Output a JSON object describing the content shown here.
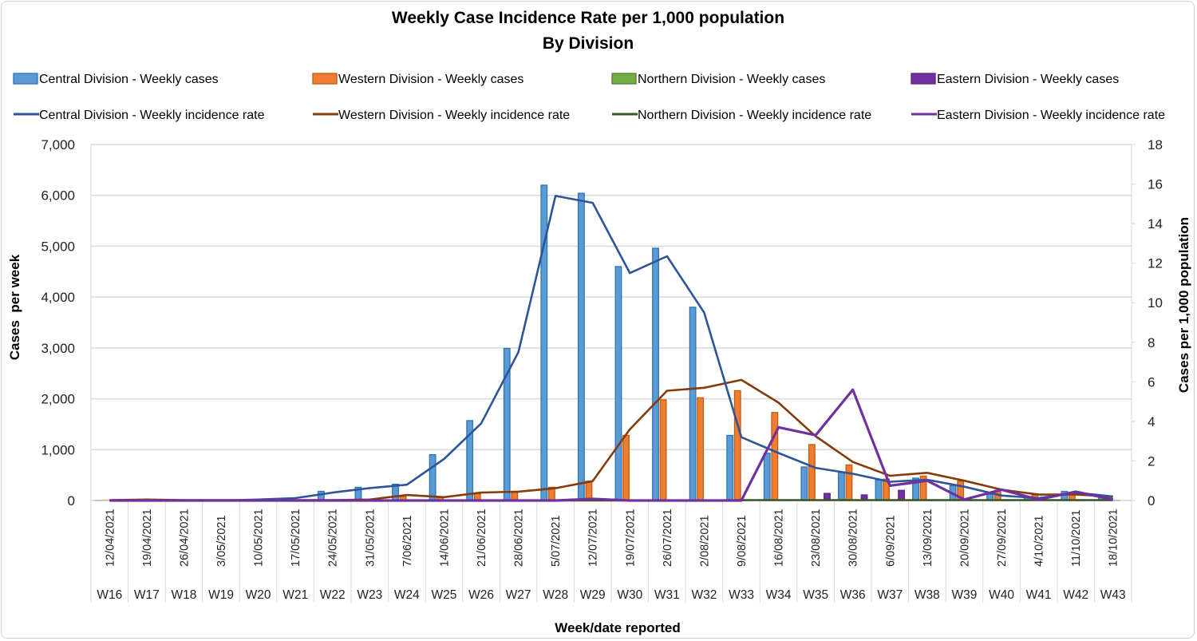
{
  "chart_data": {
    "type": "bar",
    "title": "Weekly Case Incidence Rate per 1,000 population",
    "subtitle": "By Division",
    "xlabel": "Week/date reported",
    "ylabel": "Cases  per week",
    "y2label": "Cases per 1,000 population",
    "ylim": [
      0,
      7000
    ],
    "y2lim": [
      0,
      18
    ],
    "yticks": [
      "0",
      "1,000",
      "2,000",
      "3,000",
      "4,000",
      "5,000",
      "6,000",
      "7,000"
    ],
    "y2ticks": [
      "0",
      "2",
      "4",
      "6",
      "8",
      "10",
      "12",
      "14",
      "16",
      "18"
    ],
    "grid": true,
    "legend_position": "top",
    "weeks": [
      "W16",
      "W17",
      "W18",
      "W19",
      "W20",
      "W21",
      "W22",
      "W23",
      "W24",
      "W25",
      "W26",
      "W27",
      "W28",
      "W29",
      "W30",
      "W31",
      "W32",
      "W33",
      "W34",
      "W35",
      "W36",
      "W37",
      "W38",
      "W39",
      "W40",
      "W41",
      "W42",
      "W43"
    ],
    "dates": [
      "12/04/2021",
      "19/04/2021",
      "26/04/2021",
      "3/05/2021",
      "10/05/2021",
      "17/05/2021",
      "24/05/2021",
      "31/05/2021",
      "7/06/2021",
      "14/06/2021",
      "21/06/2021",
      "28/06/2021",
      "5/07/2021",
      "12/07/2021",
      "19/07/2021",
      "26/07/2021",
      "2/08/2021",
      "9/08/2021",
      "16/08/2021",
      "23/08/2021",
      "30/08/2021",
      "6/09/2021",
      "13/09/2021",
      "20/09/2021",
      "27/09/2021",
      "4/10/2021",
      "11/10/2021",
      "18/10/2021"
    ],
    "bar_series": [
      {
        "name": "Central Division - Weekly cases",
        "color": "#5b9bd5",
        "stroke": "#2e75b6",
        "values": [
          5,
          5,
          5,
          5,
          10,
          20,
          180,
          260,
          320,
          900,
          1570,
          2990,
          6200,
          6040,
          4600,
          4960,
          3800,
          1280,
          930,
          660,
          560,
          400,
          440,
          290,
          120,
          60,
          180,
          90
        ]
      },
      {
        "name": "Western Division - Weekly cases",
        "color": "#ed7d31",
        "stroke": "#c55a11",
        "values": [
          8,
          10,
          5,
          5,
          5,
          5,
          10,
          20,
          80,
          60,
          150,
          170,
          260,
          380,
          1280,
          1980,
          2020,
          2160,
          1730,
          1100,
          700,
          420,
          480,
          380,
          200,
          110,
          120,
          60
        ]
      },
      {
        "name": "Northern Division - Weekly cases",
        "color": "#70ad47",
        "stroke": "#507e32",
        "values": [
          0,
          0,
          0,
          0,
          0,
          0,
          0,
          0,
          0,
          0,
          0,
          0,
          0,
          0,
          0,
          0,
          0,
          5,
          10,
          10,
          10,
          5,
          5,
          5,
          5,
          5,
          5,
          5
        ]
      },
      {
        "name": "Eastern Division - Weekly cases",
        "color": "#7030a0",
        "stroke": "#5b2583",
        "values": [
          0,
          0,
          0,
          0,
          0,
          0,
          0,
          0,
          0,
          0,
          0,
          0,
          0,
          0,
          0,
          0,
          0,
          0,
          0,
          140,
          110,
          200,
          10,
          0,
          0,
          0,
          0,
          0
        ]
      }
    ],
    "line_series": [
      {
        "name": "Central Division - Weekly incidence rate",
        "color": "#2f5597",
        "values": [
          0,
          0,
          0,
          0,
          0.05,
          0.12,
          0.4,
          0.63,
          0.8,
          2.1,
          3.9,
          7.5,
          15.4,
          15.05,
          11.5,
          12.35,
          9.5,
          3.2,
          2.4,
          1.65,
          1.35,
          0.95,
          1.05,
          0.7,
          0.25,
          0.12,
          0.4,
          0.2
        ]
      },
      {
        "name": "Western Division - Weekly incidence rate",
        "color": "#843c0c",
        "values": [
          0.02,
          0.05,
          0.02,
          0.02,
          0.02,
          0.02,
          0.02,
          0.05,
          0.28,
          0.17,
          0.4,
          0.45,
          0.62,
          0.98,
          3.6,
          5.55,
          5.7,
          6.1,
          4.95,
          3.25,
          1.95,
          1.25,
          1.4,
          1.0,
          0.55,
          0.3,
          0.3,
          0.2
        ]
      },
      {
        "name": "Northern Division - Weekly incidence rate",
        "color": "#375623",
        "values": [
          0,
          0,
          0,
          0,
          0,
          0,
          0,
          0,
          0,
          0,
          0,
          0,
          0,
          0,
          0,
          0,
          0,
          0.02,
          0.02,
          0.02,
          0.02,
          0.02,
          0.02,
          0.02,
          0.02,
          0.02,
          0.02,
          0.02
        ]
      },
      {
        "name": "Eastern Division - Weekly incidence rate",
        "color": "#7030a0",
        "values": [
          0,
          0,
          0,
          0,
          0,
          0,
          0,
          0,
          0,
          0,
          0,
          0,
          0,
          0.08,
          0,
          0,
          0,
          0,
          3.7,
          3.3,
          5.6,
          0.75,
          1.0,
          0.05,
          0.55,
          0.05,
          0.45,
          0.05
        ]
      }
    ]
  }
}
